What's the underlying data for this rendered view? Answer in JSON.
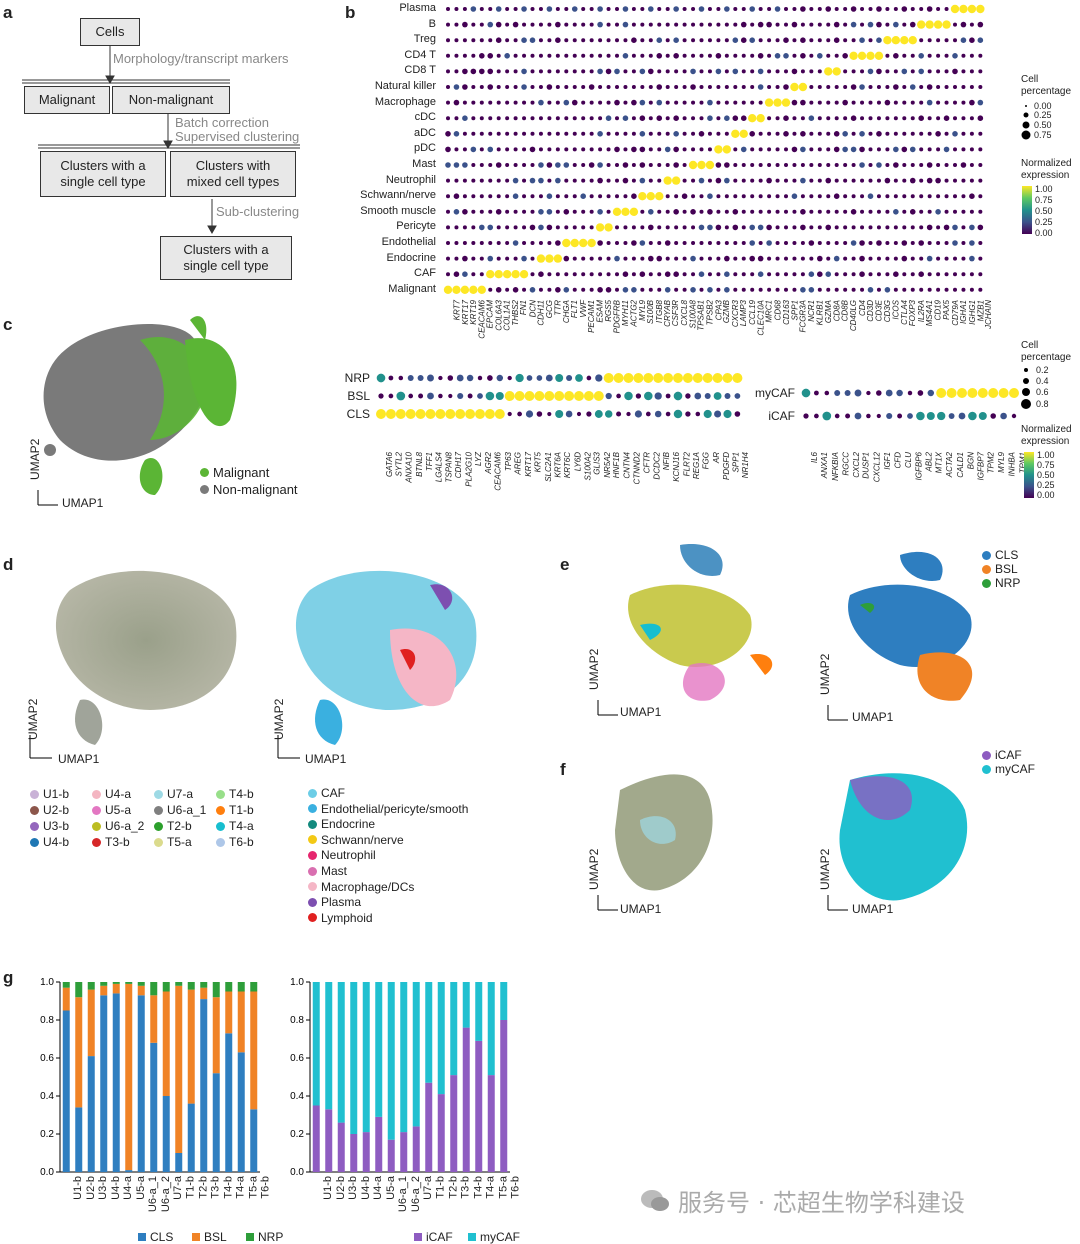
{
  "panel_labels": [
    "a",
    "b",
    "c",
    "d",
    "e",
    "f",
    "g"
  ],
  "flowchart": {
    "cells": "Cells",
    "step1": "Morphology/transcript markers",
    "malignant": "Malignant",
    "non_malignant": "Non-malignant",
    "step2": "Batch correction\nSupervised clustering",
    "single": "Clusters with a\nsingle cell type",
    "mixed": "Clusters with\nmixed cell types",
    "step3": "Sub-clustering",
    "single2": "Clusters with a\nsingle cell type"
  },
  "dotplot_b": {
    "rows": [
      "Plasma",
      "B",
      "Treg",
      "CD4 T",
      "CD8 T",
      "Natural killer",
      "Macrophage",
      "cDC",
      "aDC",
      "pDC",
      "Mast",
      "Neutrophil",
      "Schwann/nerve",
      "Smooth muscle",
      "Pericyte",
      "Endothelial",
      "Endocrine",
      "CAF",
      "Malignant"
    ],
    "genes": [
      "KRT7",
      "KRT17",
      "KRT19",
      "CEACAM6",
      "EPCAM",
      "COL6A3",
      "COL1A1",
      "THBS2",
      "FN1",
      "DCN",
      "CDH11",
      "GCG",
      "TTR",
      "CHGA",
      "FLT1",
      "VWF",
      "PECAM1",
      "ESAM",
      "RGS5",
      "PDGFRB",
      "MYH11",
      "ACTG2",
      "MYL9",
      "S100B",
      "ITGB8",
      "CRYAB",
      "CSF3R",
      "CXCL8",
      "S100A8",
      "TPSAB1",
      "TPSB2",
      "CPA3",
      "GZMB",
      "CXCR3",
      "LAMP3",
      "CCL19",
      "CLEC10A",
      "MRC1",
      "CD68",
      "CD163",
      "SPP1",
      "FCGR3A",
      "NCR1",
      "KLRB1",
      "GZMA",
      "CD8A",
      "CD8B",
      "CD40LG",
      "CD4",
      "CD3D",
      "CD3E",
      "CD3G",
      "ICOS",
      "CTLA4",
      "FOXP3",
      "IL2RA",
      "MS4A1",
      "CD19",
      "PAX5",
      "CD79A",
      "IGHA1",
      "IGHG1",
      "MZB1",
      "JCHAIN"
    ],
    "legend_pct_title": "Cell\npercentage",
    "legend_pct": [
      "0.00",
      "0.25",
      "0.50",
      "0.75"
    ],
    "legend_expr_title": "Normalized\nexpression",
    "legend_expr": [
      "1.00",
      "0.75",
      "0.50",
      "0.25",
      "0.00"
    ]
  },
  "dotplot_c1": {
    "rows": [
      "NRP",
      "BSL",
      "CLS"
    ],
    "genes": [
      "GATA6",
      "SYTL2",
      "ANXA10",
      "BTNL8",
      "TFF1",
      "LGALS4",
      "TSPAN8",
      "CDH17",
      "PLA2G10",
      "LYZ",
      "AGR2",
      "CEACAM6",
      "TP63",
      "AREG",
      "KRT17",
      "KRT5",
      "SLC2A1",
      "KRT6A",
      "KRT6C",
      "LY6D",
      "S100A2",
      "GLIS3",
      "NR5A2",
      "HNF1B",
      "CNTN4",
      "CTNND2",
      "CFTR",
      "DCDC2",
      "NFIB",
      "KCNJ16",
      "FLRT2",
      "REG1A",
      "FGG",
      "AR",
      "PDGFD",
      "SPP1",
      "NR1H4"
    ]
  },
  "dotplot_c2": {
    "rows": [
      "myCAF",
      "iCAF"
    ],
    "genes": [
      "IL6",
      "ANXA1",
      "NFKBIA",
      "RGCC",
      "CXCL2",
      "DUSP1",
      "CXCL12",
      "IGF1",
      "CFD",
      "CLU",
      "IGFBP6",
      "ABL2",
      "MT1X",
      "ACTA2",
      "CALD1",
      "BGN",
      "IGFBP7",
      "TPM2",
      "MYL9",
      "INHBA",
      "TPM1"
    ],
    "legend_pct_title": "Cell\npercentage",
    "legend_pct": [
      "0.2",
      "0.4",
      "0.6",
      "0.8"
    ],
    "legend_expr_title": "Normalized\nexpression",
    "legend_expr": [
      "1.00",
      "0.75",
      "0.50",
      "0.25",
      "0.00"
    ]
  },
  "umap_c": {
    "xlabel": "UMAP1",
    "ylabel": "UMAP2",
    "legend": [
      {
        "label": "Malignant",
        "color": "#5bb535"
      },
      {
        "label": "Non-malignant",
        "color": "#7a7a7a"
      }
    ]
  },
  "umap_d": {
    "xlabel": "UMAP1",
    "ylabel": "UMAP2",
    "samples": [
      {
        "label": "U1-b",
        "color": "#c9b2d6"
      },
      {
        "label": "U4-a",
        "color": "#f4b6c2"
      },
      {
        "label": "U7-a",
        "color": "#9edae5"
      },
      {
        "label": "T4-b",
        "color": "#98df8a"
      },
      {
        "label": "U2-b",
        "color": "#8c564b"
      },
      {
        "label": "U5-a",
        "color": "#e377c2"
      },
      {
        "label": "U6-a_1",
        "color": "#7f7f7f"
      },
      {
        "label": "T1-b",
        "color": "#ff7f0e"
      },
      {
        "label": "U3-b",
        "color": "#9467bd"
      },
      {
        "label": "U6-a_2",
        "color": "#bcbd22"
      },
      {
        "label": "T2-b",
        "color": "#2ca02c"
      },
      {
        "label": "T4-a",
        "color": "#17becf"
      },
      {
        "label": "U4-b",
        "color": "#1f77b4"
      },
      {
        "label": "T3-b",
        "color": "#d62728"
      },
      {
        "label": "T5-a",
        "color": "#dbdb8d"
      },
      {
        "label": "T6-b",
        "color": "#aec7e8"
      }
    ],
    "celltypes": [
      {
        "label": "CAF",
        "color": "#6ccde6"
      },
      {
        "label": "Endothelial/pericyte/smooth",
        "color": "#3ab0e0"
      },
      {
        "label": "Endocrine",
        "color": "#138a7e"
      },
      {
        "label": "Schwann/nerve",
        "color": "#f3c915"
      },
      {
        "label": "Neutrophil",
        "color": "#e6266e"
      },
      {
        "label": "Mast",
        "color": "#d96fb0"
      },
      {
        "label": "Macrophage/DCs",
        "color": "#f5b6c6"
      },
      {
        "label": "Plasma",
        "color": "#7d4fb0"
      },
      {
        "label": "Lymphoid",
        "color": "#e02020"
      }
    ]
  },
  "umap_e": {
    "xlabel": "UMAP1",
    "ylabel": "UMAP2",
    "legend": [
      {
        "label": "CLS",
        "color": "#2e7ec0"
      },
      {
        "label": "BSL",
        "color": "#f08326"
      },
      {
        "label": "NRP",
        "color": "#2e9e3a"
      }
    ]
  },
  "umap_f": {
    "xlabel": "UMAP1",
    "ylabel": "UMAP2",
    "legend": [
      {
        "label": "iCAF",
        "color": "#8e5cc1"
      },
      {
        "label": "myCAF",
        "color": "#20c0d0"
      }
    ]
  },
  "chart_data": [
    {
      "type": "bar",
      "stacked": true,
      "categories": [
        "U1-b",
        "U2-b",
        "U3-b",
        "U4-b",
        "U4-a",
        "U5-a",
        "U6-a_1",
        "U6-a_2",
        "U7-a",
        "T1-b",
        "T2-b",
        "T3-b",
        "T4-b",
        "T4-a",
        "T5-a",
        "T6-b"
      ],
      "series": [
        {
          "name": "CLS",
          "color": "#2e7ec0",
          "values": [
            0.85,
            0.34,
            0.61,
            0.93,
            0.94,
            0.01,
            0.93,
            0.68,
            0.4,
            0.1,
            0.36,
            0.91,
            0.52,
            0.73,
            0.63,
            0.33
          ]
        },
        {
          "name": "BSL",
          "color": "#f08326",
          "values": [
            0.12,
            0.58,
            0.35,
            0.05,
            0.05,
            0.98,
            0.05,
            0.25,
            0.55,
            0.88,
            0.6,
            0.06,
            0.4,
            0.22,
            0.32,
            0.62
          ]
        },
        {
          "name": "NRP",
          "color": "#2e9e3a",
          "values": [
            0.03,
            0.08,
            0.04,
            0.02,
            0.01,
            0.01,
            0.02,
            0.07,
            0.05,
            0.02,
            0.04,
            0.03,
            0.08,
            0.05,
            0.05,
            0.05
          ]
        }
      ],
      "yticks": [
        "0.0",
        "0.2",
        "0.4",
        "0.6",
        "0.8",
        "1.0"
      ],
      "ylim": [
        0,
        1
      ]
    },
    {
      "type": "bar",
      "stacked": true,
      "categories": [
        "U1-b",
        "U2-b",
        "U3-b",
        "U4-b",
        "U4-a",
        "U5-a",
        "U6-a_1",
        "U6-a_2",
        "U7-a",
        "T1-b",
        "T2-b",
        "T3-b",
        "T4-b",
        "T4-a",
        "T5-a",
        "T6-b"
      ],
      "series": [
        {
          "name": "iCAF",
          "color": "#8e5cc1",
          "values": [
            0.35,
            0.33,
            0.26,
            0.2,
            0.21,
            0.29,
            0.17,
            0.21,
            0.24,
            0.47,
            0.41,
            0.51,
            0.76,
            0.69,
            0.51,
            0.8
          ]
        },
        {
          "name": "myCAF",
          "color": "#20c0d0",
          "values": [
            0.65,
            0.67,
            0.74,
            0.8,
            0.79,
            0.71,
            0.83,
            0.79,
            0.76,
            0.53,
            0.59,
            0.49,
            0.24,
            0.31,
            0.49,
            0.2
          ]
        }
      ],
      "yticks": [
        "0.0",
        "0.2",
        "0.4",
        "0.6",
        "0.8",
        "1.0"
      ],
      "ylim": [
        0,
        1
      ]
    }
  ],
  "watermark": "服务号 · 芯超生物学科建设"
}
